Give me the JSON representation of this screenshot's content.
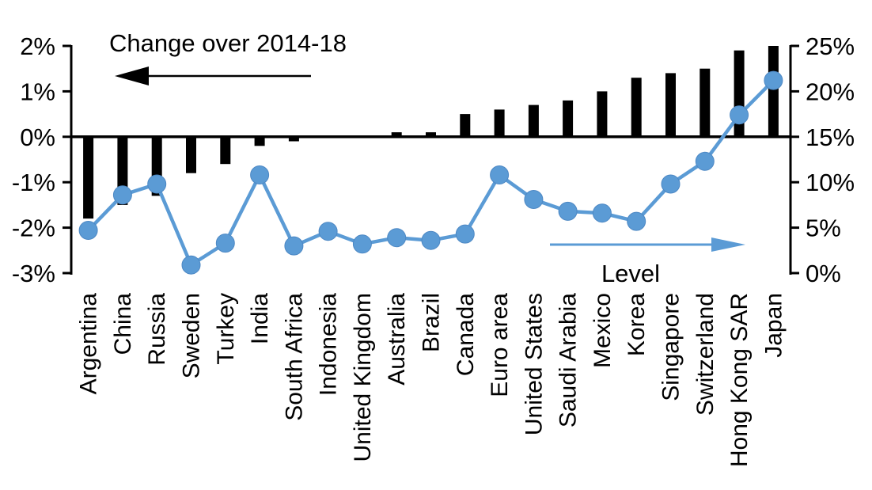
{
  "chart_data": {
    "type": "bar",
    "subtype": "combo-bar-line-dual-axis",
    "title": "",
    "bar_series_label": "Change over 2014-18",
    "line_series_label": "Level",
    "categories": [
      "Argentina",
      "China",
      "Russia",
      "Sweden",
      "Turkey",
      "India",
      "South Africa",
      "Indonesia",
      "United Kingdom",
      "Australia",
      "Brazil",
      "Canada",
      "Euro area",
      "United States",
      "Saudi Arabia",
      "Mexico",
      "Korea",
      "Singapore",
      "Switzerland",
      "Hong Kong SAR",
      "Japan"
    ],
    "series": [
      {
        "name": "Change over 2014-18",
        "type": "bar",
        "axis": "left",
        "color": "#000000",
        "unit": "%",
        "values": [
          -1.8,
          -1.5,
          -1.3,
          -0.8,
          -0.6,
          -0.2,
          -0.1,
          0.0,
          0.0,
          0.1,
          0.1,
          0.5,
          0.6,
          0.7,
          0.8,
          1.0,
          1.3,
          1.4,
          1.5,
          1.9,
          2.0
        ]
      },
      {
        "name": "Level",
        "type": "line",
        "axis": "right",
        "color": "#5B9BD5",
        "unit": "%",
        "values": [
          4.7,
          8.6,
          9.8,
          0.9,
          3.3,
          10.8,
          3.0,
          4.6,
          3.2,
          3.9,
          3.6,
          4.3,
          10.8,
          8.1,
          6.8,
          6.6,
          5.7,
          9.8,
          12.3,
          17.4,
          21.2
        ]
      }
    ],
    "left_axis": {
      "min": -3,
      "max": 2,
      "unit": "%",
      "tick_values": [
        2,
        1,
        0,
        -1,
        -2,
        -3
      ],
      "tick_labels": [
        "2%",
        "1%",
        "0%",
        "-1%",
        "-2%",
        "-3%"
      ]
    },
    "right_axis": {
      "min": 0,
      "max": 25,
      "unit": "%",
      "tick_values": [
        25,
        20,
        15,
        10,
        5,
        0
      ],
      "tick_labels": [
        "25%",
        "20%",
        "15%",
        "10%",
        "5%",
        "0%"
      ]
    },
    "grid": false,
    "legend_position": "in-plot annotated arrows",
    "colors": {
      "bar": "#000000",
      "line": "#5B9BD5",
      "axis": "#000000",
      "background": "#ffffff"
    }
  }
}
